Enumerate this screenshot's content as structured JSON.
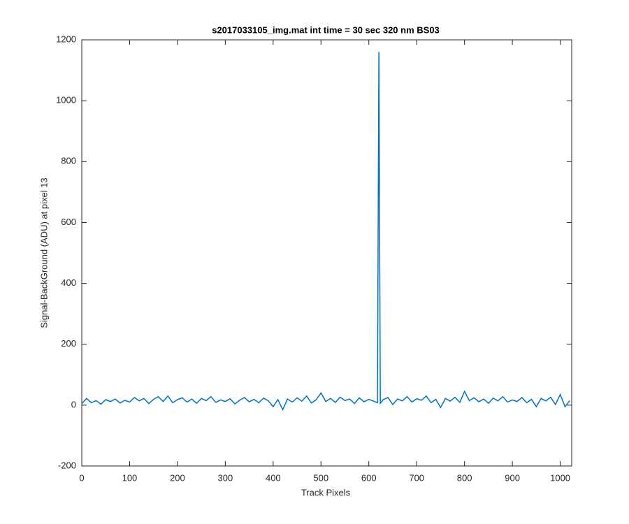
{
  "chart_data": {
    "type": "line",
    "title": "s2017033105_img.mat int time = 30 sec  320 nm BS03",
    "x_label": "Track Pixels",
    "y_label": "Signal-BackGround (ADU) at pixel 13",
    "x": [
      0,
      10,
      20,
      30,
      40,
      50,
      60,
      70,
      80,
      90,
      100,
      110,
      120,
      130,
      140,
      150,
      160,
      170,
      180,
      190,
      200,
      210,
      220,
      230,
      240,
      250,
      260,
      270,
      280,
      290,
      300,
      310,
      320,
      330,
      340,
      350,
      360,
      370,
      380,
      390,
      400,
      410,
      420,
      430,
      440,
      450,
      460,
      470,
      480,
      490,
      500,
      510,
      520,
      530,
      540,
      550,
      560,
      570,
      580,
      590,
      600,
      610,
      618,
      621,
      624,
      630,
      640,
      650,
      660,
      670,
      680,
      690,
      700,
      710,
      720,
      730,
      740,
      750,
      760,
      770,
      780,
      790,
      800,
      810,
      820,
      830,
      840,
      850,
      860,
      870,
      880,
      890,
      900,
      910,
      920,
      930,
      940,
      950,
      960,
      970,
      980,
      990,
      1000,
      1010,
      1020
    ],
    "series": [
      {
        "color": "#0072bd",
        "values": [
          5,
          22,
          8,
          15,
          3,
          18,
          12,
          20,
          7,
          16,
          10,
          25,
          14,
          22,
          5,
          19,
          28,
          12,
          30,
          8,
          18,
          24,
          10,
          20,
          6,
          22,
          15,
          28,
          9,
          17,
          12,
          21,
          4,
          16,
          25,
          11,
          19,
          8,
          23,
          14,
          -5,
          18,
          -15,
          20,
          10,
          24,
          13,
          30,
          7,
          18,
          40,
          12,
          22,
          9,
          26,
          15,
          20,
          5,
          24,
          11,
          19,
          13,
          8,
          1160,
          6,
          18,
          25,
          2,
          20,
          14,
          28,
          10,
          21,
          16,
          30,
          8,
          19,
          -8,
          22,
          13,
          26,
          9,
          45,
          15,
          24,
          11,
          20,
          6,
          23,
          14,
          28,
          10,
          17,
          12,
          25,
          8,
          19,
          -5,
          22,
          14,
          26,
          2,
          35,
          -5,
          15
        ]
      }
    ],
    "xlim": [
      0,
      1024
    ],
    "ylim": [
      -200,
      1200
    ],
    "xticks": [
      0,
      100,
      200,
      300,
      400,
      500,
      600,
      700,
      800,
      900,
      1000
    ],
    "yticks": [
      -200,
      0,
      200,
      400,
      600,
      800,
      1000,
      1200
    ]
  }
}
